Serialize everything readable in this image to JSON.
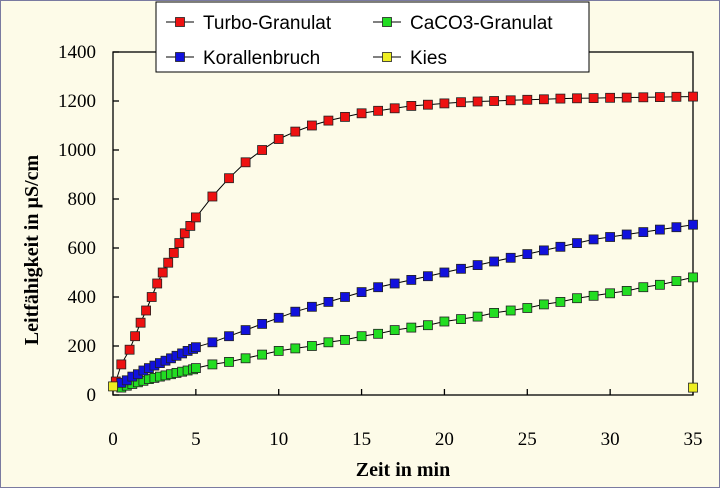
{
  "chart_data": {
    "type": "line",
    "title": "",
    "xlabel": "Zeit in min",
    "ylabel": "Leitfähigkeit in µS/cm",
    "xlim": [
      0,
      35
    ],
    "ylim": [
      0,
      1400
    ],
    "xticks": [
      0,
      5,
      10,
      15,
      20,
      25,
      30,
      35
    ],
    "yticks": [
      0,
      200,
      400,
      600,
      800,
      1000,
      1200,
      1400
    ],
    "grid": false,
    "legend_placement": "top",
    "series": [
      {
        "name": "Turbo-Granulat",
        "color": "#ee1111",
        "marker": "square",
        "x": [
          0.167,
          0.5,
          1,
          1.333,
          1.667,
          2,
          2.333,
          2.667,
          3,
          3.333,
          3.667,
          4,
          4.333,
          4.667,
          5,
          6,
          7,
          8,
          9,
          10,
          11,
          12,
          13,
          14,
          15,
          16,
          17,
          18,
          19,
          20,
          21,
          22,
          23,
          24,
          25,
          26,
          27,
          28,
          29,
          30,
          31,
          32,
          33,
          34,
          35
        ],
        "y": [
          55,
          125,
          185,
          240,
          295,
          345,
          400,
          455,
          500,
          540,
          580,
          620,
          660,
          690,
          725,
          810,
          885,
          950,
          1000,
          1045,
          1075,
          1100,
          1120,
          1135,
          1150,
          1160,
          1170,
          1180,
          1185,
          1190,
          1195,
          1198,
          1200,
          1203,
          1205,
          1207,
          1210,
          1211,
          1212,
          1213,
          1214,
          1215,
          1216,
          1217,
          1218
        ]
      },
      {
        "name": "CaCO3-Granulat",
        "color": "#22dd22",
        "marker": "square",
        "x": [
          0.5,
          0.833,
          1.167,
          1.5,
          1.833,
          2.167,
          2.5,
          2.833,
          3.167,
          3.5,
          3.833,
          4.167,
          4.5,
          4.833,
          5,
          6,
          7,
          8,
          9,
          10,
          11,
          12,
          13,
          14,
          15,
          16,
          17,
          18,
          19,
          20,
          21,
          22,
          23,
          24,
          25,
          26,
          27,
          28,
          29,
          30,
          31,
          32,
          33,
          34,
          35
        ],
        "y": [
          30,
          38,
          45,
          52,
          58,
          65,
          70,
          75,
          80,
          85,
          90,
          95,
          100,
          105,
          110,
          125,
          135,
          150,
          165,
          180,
          190,
          200,
          215,
          225,
          240,
          250,
          265,
          275,
          285,
          300,
          310,
          320,
          335,
          345,
          355,
          370,
          380,
          395,
          405,
          415,
          425,
          440,
          450,
          465,
          480
        ]
      },
      {
        "name": "Korallenbruch",
        "color": "#1111dd",
        "marker": "square",
        "x": [
          0.5,
          0.833,
          1.167,
          1.5,
          1.833,
          2.167,
          2.5,
          2.833,
          3.167,
          3.5,
          3.833,
          4.167,
          4.5,
          4.833,
          5,
          6,
          7,
          8,
          9,
          10,
          11,
          12,
          13,
          14,
          15,
          16,
          17,
          18,
          19,
          20,
          21,
          22,
          23,
          24,
          25,
          26,
          27,
          28,
          29,
          30,
          31,
          32,
          33,
          34,
          35
        ],
        "y": [
          50,
          60,
          75,
          85,
          100,
          110,
          120,
          130,
          140,
          150,
          160,
          170,
          180,
          188,
          195,
          215,
          240,
          265,
          290,
          315,
          340,
          360,
          380,
          400,
          420,
          440,
          455,
          470,
          485,
          500,
          515,
          530,
          545,
          560,
          575,
          590,
          605,
          620,
          635,
          645,
          655,
          665,
          675,
          685,
          695
        ]
      },
      {
        "name": "Kies",
        "color": "#eeee22",
        "marker": "square",
        "x": [
          0,
          35
        ],
        "y": [
          35,
          30
        ]
      }
    ]
  }
}
